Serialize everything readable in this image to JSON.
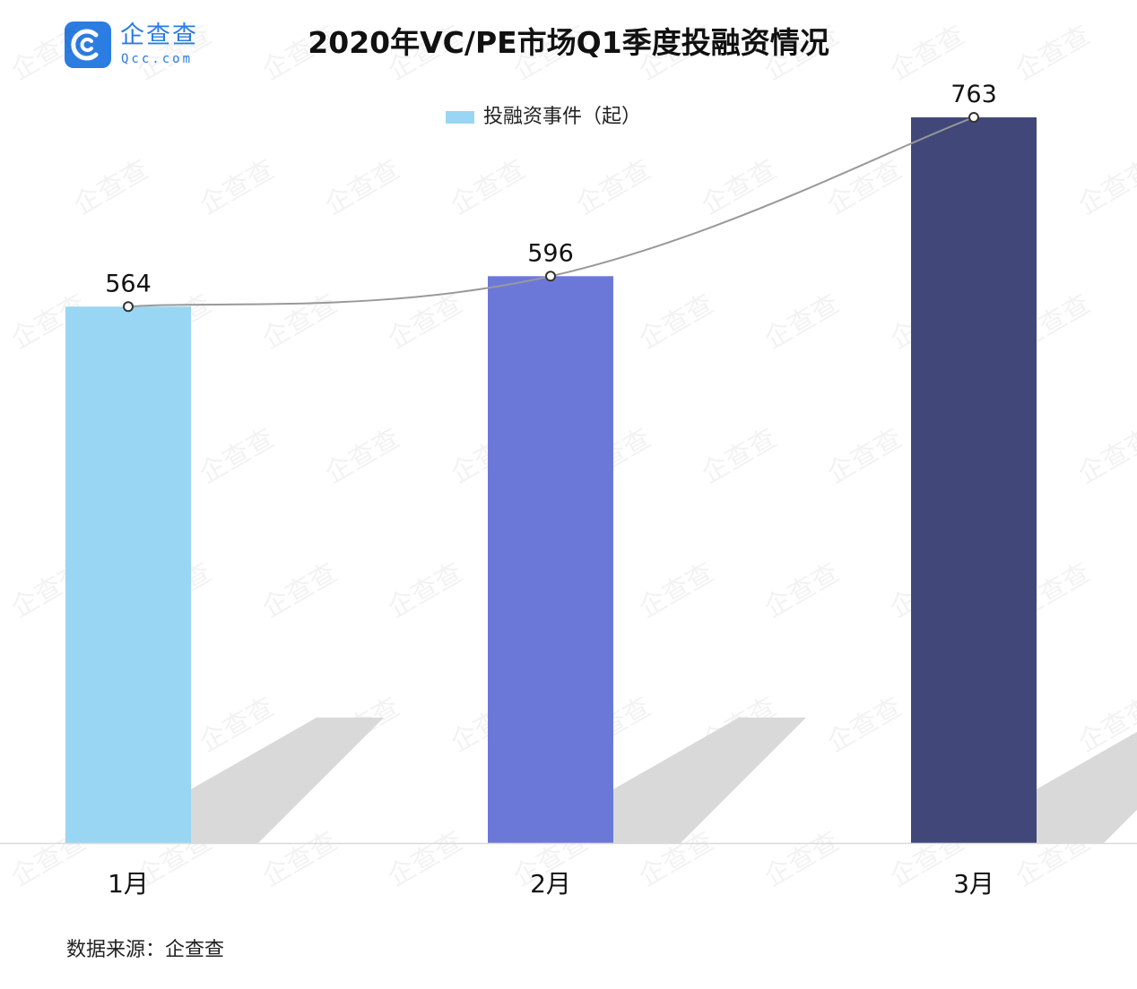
{
  "logo": {
    "brand": "企查查",
    "domain": "Qcc.com",
    "color": "#2b7de1",
    "icon": "qcc-logo-icon"
  },
  "title": "2020年VC/PE市场Q1季度投融资情况",
  "source": "数据来源：企查查",
  "watermark": {
    "text": "企查查"
  },
  "chart_data": {
    "type": "bar",
    "categories": [
      "1月",
      "2月",
      "3月"
    ],
    "series": [
      {
        "name": "投融资事件（起）",
        "values": [
          564,
          596,
          763
        ],
        "colors": [
          "#99d6f3",
          "#6c78d8",
          "#414879"
        ],
        "legend_color": "#99d6f3"
      }
    ],
    "trend_line": {
      "values": [
        564,
        596,
        763
      ],
      "color": "#999999"
    },
    "data_labels": [
      "564",
      "596",
      "763"
    ],
    "ylim": [
      0,
      763
    ],
    "grid": false,
    "legend_position": "top-center"
  }
}
